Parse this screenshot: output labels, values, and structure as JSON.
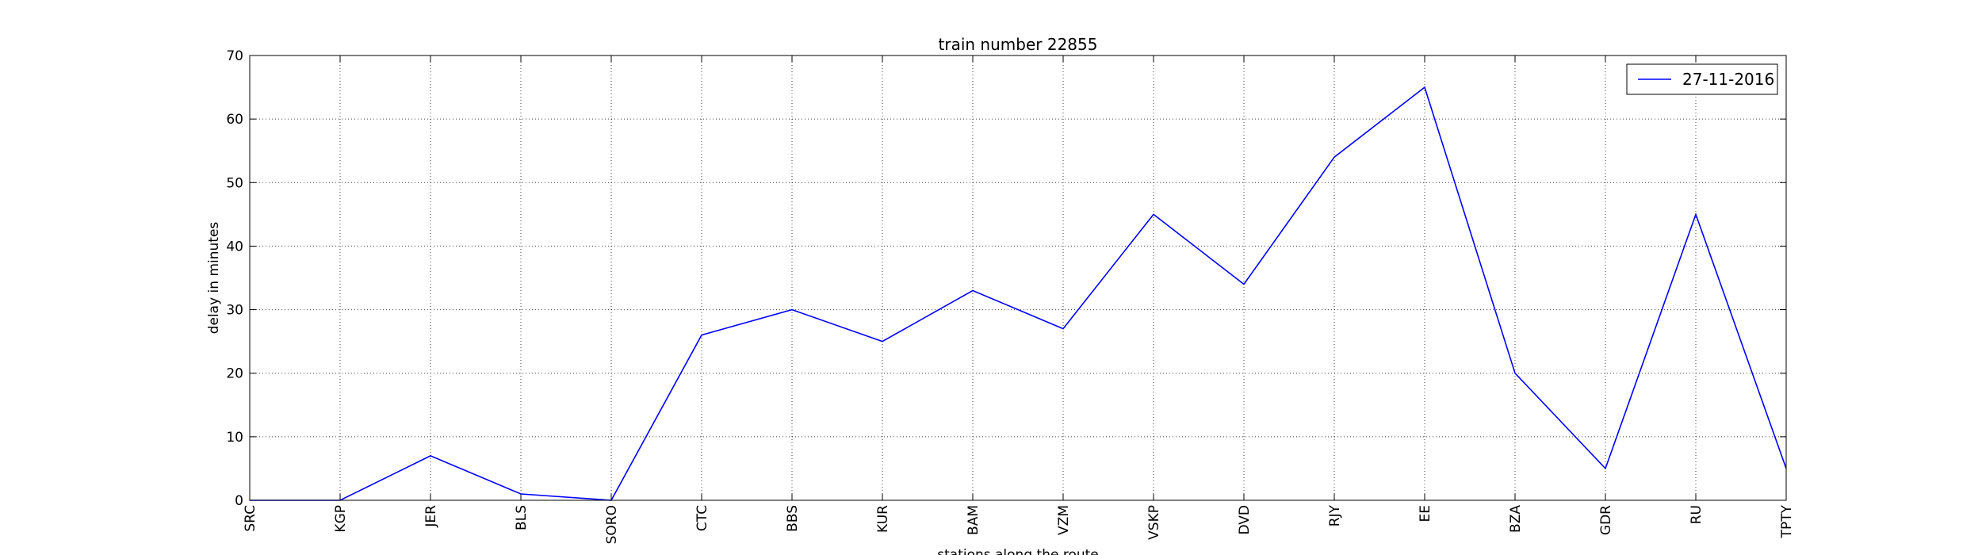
{
  "chart_data": {
    "type": "line",
    "title": "train number 22855",
    "xlabel": "stations along the route",
    "ylabel": "delay in minutes",
    "categories": [
      "SRC",
      "KGP",
      "JER",
      "BLS",
      "SORO",
      "CTC",
      "BBS",
      "KUR",
      "BAM",
      "VZM",
      "VSKP",
      "DVD",
      "RJY",
      "EE",
      "BZA",
      "GDR",
      "RU",
      "TPTY"
    ],
    "series": [
      {
        "name": "27-11-2016",
        "color": "#0000ff",
        "values": [
          0,
          0,
          7,
          1,
          0,
          26,
          30,
          25,
          33,
          27,
          45,
          34,
          54,
          65,
          20,
          5,
          45,
          5
        ]
      }
    ],
    "ylim": [
      0,
      70
    ],
    "yticks": [
      0,
      10,
      20,
      30,
      40,
      50,
      60,
      70
    ],
    "grid": true,
    "grid_style": "dotted",
    "legend_position": "top-right",
    "xtick_rotation": "vertical"
  }
}
